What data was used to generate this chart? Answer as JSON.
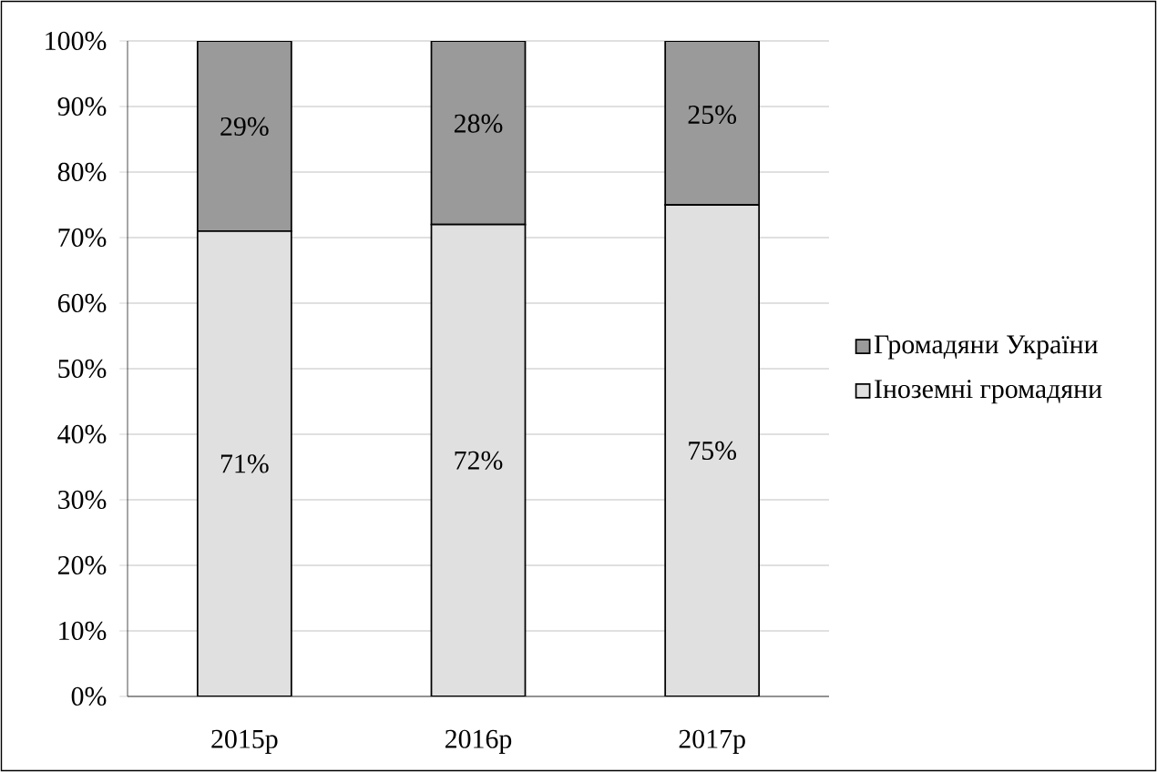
{
  "chart_data": {
    "type": "bar",
    "stacked": true,
    "categories": [
      "2015р",
      "2016р",
      "2017р"
    ],
    "series": [
      {
        "name": "Іноземні громадяни",
        "color": "#e0e0e0",
        "values": [
          71,
          72,
          75
        ],
        "value_labels": [
          "71%",
          "72%",
          "75%"
        ]
      },
      {
        "name": "Громадяни України",
        "color": "#9a9a9a",
        "values": [
          29,
          28,
          25
        ],
        "value_labels": [
          "29%",
          "28%",
          "25%"
        ]
      }
    ],
    "ylim": [
      0,
      100
    ],
    "yticks": [
      {
        "value": 0,
        "label": "0%"
      },
      {
        "value": 10,
        "label": "10%"
      },
      {
        "value": 20,
        "label": "20%"
      },
      {
        "value": 30,
        "label": "30%"
      },
      {
        "value": 40,
        "label": "40%"
      },
      {
        "value": 50,
        "label": "50%"
      },
      {
        "value": 60,
        "label": "60%"
      },
      {
        "value": 70,
        "label": "70%"
      },
      {
        "value": 80,
        "label": "80%"
      },
      {
        "value": 90,
        "label": "90%"
      },
      {
        "value": 100,
        "label": "100%"
      }
    ],
    "grid": "y",
    "legend": "right"
  }
}
